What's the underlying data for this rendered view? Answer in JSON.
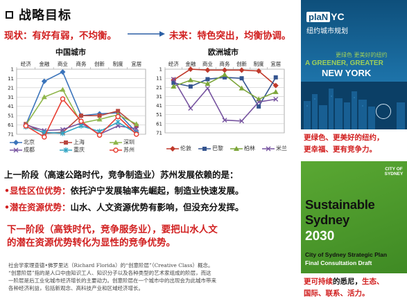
{
  "header": {
    "title": "战略目标"
  },
  "comparison": {
    "current": "现状：有好有弱，不均衡。",
    "future": "未来：特色突出，均衡协调。"
  },
  "chart_data": [
    {
      "type": "line",
      "title": "中国城市",
      "categories": [
        "经济",
        "金融",
        "商业",
        "商务",
        "创新",
        "制度",
        "宜居"
      ],
      "y_ticks": [
        "1",
        "11",
        "21",
        "31",
        "41",
        "51",
        "61",
        "71"
      ],
      "y_reversed": true,
      "ylim": [
        1,
        71
      ],
      "series": [
        {
          "name": "北京",
          "values": [
            61,
            14,
            4,
            51,
            49,
            48,
            69
          ],
          "color": "#3b74bb",
          "marker": "diamond"
        },
        {
          "name": "上海",
          "values": [
            60,
            70,
            69,
            51,
            51,
            46,
            62
          ],
          "color": "#b9473f",
          "marker": "square"
        },
        {
          "name": "深圳",
          "values": [
            61,
            31,
            23,
            59,
            55,
            50,
            60
          ],
          "color": "#8fb64b",
          "marker": "triangle"
        },
        {
          "name": "成都",
          "values": [
            61,
            67,
            66,
            59,
            71,
            62,
            65
          ],
          "color": "#7754a0",
          "marker": "x"
        },
        {
          "name": "重庆",
          "values": [
            63,
            69,
            70,
            62,
            68,
            58,
            70
          ],
          "color": "#32a5c4",
          "marker": "star"
        },
        {
          "name": "苏州",
          "values": [
            62,
            74,
            33,
            57,
            72,
            52,
            71
          ],
          "color": "#e73f33",
          "marker": "circle"
        }
      ]
    },
    {
      "type": "line",
      "title": "欧洲城市",
      "categories": [
        "经济",
        "金融",
        "商业",
        "商务",
        "创新",
        "制度",
        "宜居"
      ],
      "y_ticks": [
        "1",
        "11",
        "21",
        "31",
        "41",
        "51",
        "61",
        "71"
      ],
      "y_reversed": true,
      "ylim": [
        1,
        71
      ],
      "series": [
        {
          "name": "伦敦",
          "values": [
            13,
            1,
            2,
            2,
            2,
            3,
            19
          ],
          "color": "#c0392b",
          "marker": "diamond"
        },
        {
          "name": "巴黎",
          "values": [
            16,
            20,
            12,
            10,
            11,
            42,
            10
          ],
          "color": "#34548f",
          "marker": "square"
        },
        {
          "name": "柏林",
          "values": [
            20,
            13,
            17,
            7,
            22,
            34,
            26
          ],
          "color": "#7da63a",
          "marker": "triangle"
        },
        {
          "name": "米兰",
          "values": [
            12,
            44,
            22,
            57,
            58,
            37,
            34
          ],
          "color": "#7754a0",
          "marker": "x"
        }
      ]
    }
  ],
  "body": {
    "line1": "上一阶段（高速公路时代，竞争制造业）苏州发展依赖的是：",
    "bullet1_label": "•显性区位优势：",
    "bullet1_text": "依托沪宁发展轴率先崛起，制造业快速发展。",
    "bullet2_label": "•潜在资源优势：",
    "bullet2_text": "山水、人文资源优势有影响，但没充分发挥。",
    "highlight_line1": "下一阶段（高铁时代，竞争服务业），要把山水人文",
    "highlight_line2": "的潜在资源优势转化为显性的竞争优势。"
  },
  "note": {
    "line1": "社会学家理查德•佛罗里达（Richard Florida）的“创意阶层”（Creative Class）概念。",
    "line2": "“创意阶层”指的是人口中由知识工人、知识分子以及各种类型的艺术家组成的阶层，而这",
    "line3": "一阶层是后工业化城市经济增长的主要动力。创意阶层在一个城市中的出现会为此城市带来",
    "line4": "各种经济利益，包括新观念、高科技产业和区域经济增长。"
  },
  "nyc": {
    "logo_plan": "plaN",
    "logo_yc": "YC",
    "subtitle": "纽约城市规划",
    "green_cn": "更绿色 更美好的纽约",
    "slogan1": "A GREENER, GREATER",
    "slogan2": "NEW YORK",
    "caption1": "更绿色、更美好的纽约，",
    "caption2": "更幸福、更有竞争力。"
  },
  "sydney": {
    "logo": "CITY OF SYDNEY",
    "title1": "Sustainable",
    "title2": "Sydney",
    "year": "2030",
    "sub1": "City of Sydney Strategic Plan",
    "sub2": "Final Consultation Draft",
    "caption1_red": "更可持续",
    "caption1_dark": "的悉尼，",
    "caption1_red2": "生态、",
    "caption2": "国际、联系、活力。"
  },
  "colors": {
    "accent_red": "#d11f1f",
    "nyc_blue": "#0e4f7b",
    "sydney_green": "#4e9a2c",
    "arrow_blue": "#2b5fa5"
  }
}
